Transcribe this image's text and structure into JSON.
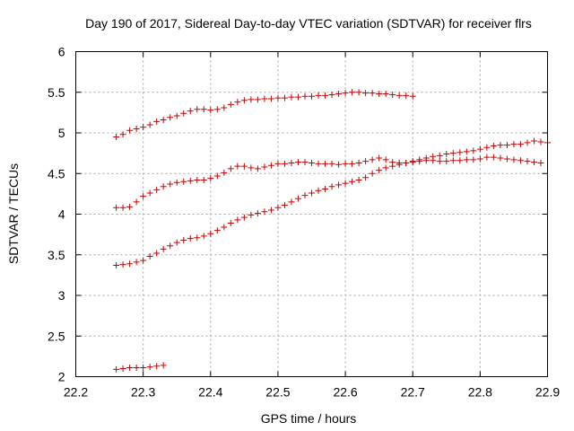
{
  "chart_data": {
    "type": "scatter",
    "title": "Day 190 of 2017, Sidereal Day-to-day VTEC variation (SDTVAR) for receiver flrs",
    "xlabel": "GPS time / hours",
    "ylabel": "SDTVAR / TECUs",
    "xlim": [
      22.2,
      22.9
    ],
    "ylim": [
      2,
      6
    ],
    "xticks": [
      "22.2",
      "22.3",
      "22.4",
      "22.5",
      "22.6",
      "22.7",
      "22.8",
      "22.9"
    ],
    "yticks": [
      "2",
      "2.5",
      "3",
      "3.5",
      "4",
      "4.5",
      "5",
      "5.5",
      "6"
    ],
    "grid": true,
    "marker": "+",
    "color": "#cc0000",
    "series": [
      {
        "name": "series-1",
        "points": [
          [
            22.26,
            4.95
          ],
          [
            22.27,
            4.98
          ],
          [
            22.28,
            5.03
          ],
          [
            22.29,
            5.05
          ],
          [
            22.3,
            5.07
          ],
          [
            22.31,
            5.1
          ],
          [
            22.32,
            5.14
          ],
          [
            22.33,
            5.16
          ],
          [
            22.34,
            5.19
          ],
          [
            22.35,
            5.21
          ],
          [
            22.36,
            5.24
          ],
          [
            22.37,
            5.27
          ],
          [
            22.38,
            5.29
          ],
          [
            22.39,
            5.29
          ],
          [
            22.4,
            5.28
          ],
          [
            22.41,
            5.29
          ],
          [
            22.42,
            5.31
          ],
          [
            22.43,
            5.35
          ],
          [
            22.44,
            5.38
          ],
          [
            22.45,
            5.4
          ],
          [
            22.46,
            5.41
          ],
          [
            22.47,
            5.41
          ],
          [
            22.48,
            5.42
          ],
          [
            22.49,
            5.42
          ],
          [
            22.5,
            5.43
          ],
          [
            22.51,
            5.43
          ],
          [
            22.52,
            5.44
          ],
          [
            22.53,
            5.44
          ],
          [
            22.54,
            5.45
          ],
          [
            22.55,
            5.45
          ],
          [
            22.56,
            5.46
          ],
          [
            22.57,
            5.46
          ],
          [
            22.58,
            5.47
          ],
          [
            22.59,
            5.48
          ],
          [
            22.6,
            5.49
          ],
          [
            22.61,
            5.5
          ],
          [
            22.62,
            5.5
          ],
          [
            22.63,
            5.49
          ],
          [
            22.64,
            5.49
          ],
          [
            22.65,
            5.48
          ],
          [
            22.66,
            5.48
          ],
          [
            22.67,
            5.47
          ],
          [
            22.68,
            5.46
          ],
          [
            22.69,
            5.46
          ],
          [
            22.7,
            5.45
          ]
        ]
      },
      {
        "name": "series-2",
        "points": [
          [
            22.26,
            4.08
          ],
          [
            22.27,
            4.08
          ],
          [
            22.28,
            4.09
          ],
          [
            22.29,
            4.15
          ],
          [
            22.3,
            4.22
          ],
          [
            22.31,
            4.26
          ],
          [
            22.32,
            4.3
          ],
          [
            22.33,
            4.34
          ],
          [
            22.34,
            4.37
          ],
          [
            22.35,
            4.39
          ],
          [
            22.36,
            4.4
          ],
          [
            22.37,
            4.41
          ],
          [
            22.38,
            4.42
          ],
          [
            22.39,
            4.42
          ],
          [
            22.4,
            4.44
          ],
          [
            22.41,
            4.47
          ],
          [
            22.42,
            4.51
          ],
          [
            22.43,
            4.56
          ],
          [
            22.44,
            4.59
          ],
          [
            22.45,
            4.59
          ],
          [
            22.46,
            4.57
          ],
          [
            22.47,
            4.56
          ],
          [
            22.48,
            4.58
          ],
          [
            22.49,
            4.6
          ],
          [
            22.5,
            4.62
          ],
          [
            22.51,
            4.62
          ],
          [
            22.52,
            4.63
          ],
          [
            22.53,
            4.64
          ],
          [
            22.54,
            4.64
          ],
          [
            22.55,
            4.63
          ],
          [
            22.56,
            4.62
          ],
          [
            22.57,
            4.62
          ],
          [
            22.58,
            4.62
          ],
          [
            22.59,
            4.61
          ],
          [
            22.6,
            4.62
          ],
          [
            22.61,
            4.62
          ],
          [
            22.62,
            4.63
          ],
          [
            22.63,
            4.65
          ],
          [
            22.64,
            4.67
          ],
          [
            22.65,
            4.69
          ],
          [
            22.66,
            4.67
          ],
          [
            22.67,
            4.64
          ],
          [
            22.68,
            4.63
          ],
          [
            22.69,
            4.63
          ],
          [
            22.7,
            4.64
          ],
          [
            22.71,
            4.65
          ],
          [
            22.72,
            4.66
          ],
          [
            22.73,
            4.66
          ],
          [
            22.74,
            4.65
          ],
          [
            22.75,
            4.65
          ],
          [
            22.76,
            4.66
          ],
          [
            22.77,
            4.66
          ],
          [
            22.78,
            4.67
          ],
          [
            22.79,
            4.67
          ],
          [
            22.8,
            4.68
          ],
          [
            22.81,
            4.7
          ],
          [
            22.82,
            4.7
          ],
          [
            22.83,
            4.69
          ],
          [
            22.84,
            4.68
          ],
          [
            22.85,
            4.67
          ],
          [
            22.86,
            4.66
          ],
          [
            22.87,
            4.65
          ],
          [
            22.88,
            4.64
          ],
          [
            22.89,
            4.63
          ]
        ]
      },
      {
        "name": "series-3",
        "points": [
          [
            22.26,
            3.37
          ],
          [
            22.27,
            3.38
          ],
          [
            22.28,
            3.39
          ],
          [
            22.29,
            3.41
          ],
          [
            22.3,
            3.43
          ],
          [
            22.31,
            3.48
          ],
          [
            22.32,
            3.52
          ],
          [
            22.33,
            3.57
          ],
          [
            22.34,
            3.61
          ],
          [
            22.35,
            3.65
          ],
          [
            22.36,
            3.68
          ],
          [
            22.37,
            3.7
          ],
          [
            22.38,
            3.71
          ],
          [
            22.39,
            3.73
          ],
          [
            22.4,
            3.76
          ],
          [
            22.41,
            3.8
          ],
          [
            22.42,
            3.84
          ],
          [
            22.43,
            3.89
          ],
          [
            22.44,
            3.93
          ],
          [
            22.45,
            3.96
          ],
          [
            22.46,
            3.99
          ],
          [
            22.47,
            4.01
          ],
          [
            22.48,
            4.03
          ],
          [
            22.49,
            4.05
          ],
          [
            22.5,
            4.08
          ],
          [
            22.51,
            4.11
          ],
          [
            22.52,
            4.15
          ],
          [
            22.53,
            4.19
          ],
          [
            22.54,
            4.23
          ],
          [
            22.55,
            4.26
          ],
          [
            22.56,
            4.29
          ],
          [
            22.57,
            4.31
          ],
          [
            22.58,
            4.34
          ],
          [
            22.59,
            4.36
          ],
          [
            22.6,
            4.38
          ],
          [
            22.61,
            4.4
          ],
          [
            22.62,
            4.42
          ],
          [
            22.63,
            4.45
          ],
          [
            22.64,
            4.5
          ],
          [
            22.65,
            4.54
          ],
          [
            22.66,
            4.57
          ],
          [
            22.67,
            4.59
          ],
          [
            22.68,
            4.61
          ],
          [
            22.69,
            4.63
          ],
          [
            22.7,
            4.65
          ],
          [
            22.71,
            4.67
          ],
          [
            22.72,
            4.69
          ],
          [
            22.73,
            4.71
          ],
          [
            22.74,
            4.72
          ],
          [
            22.75,
            4.74
          ],
          [
            22.76,
            4.75
          ],
          [
            22.77,
            4.76
          ],
          [
            22.78,
            4.77
          ],
          [
            22.79,
            4.78
          ],
          [
            22.8,
            4.8
          ],
          [
            22.81,
            4.82
          ],
          [
            22.82,
            4.84
          ],
          [
            22.83,
            4.85
          ],
          [
            22.84,
            4.85
          ],
          [
            22.85,
            4.86
          ],
          [
            22.86,
            4.86
          ],
          [
            22.87,
            4.88
          ],
          [
            22.88,
            4.9
          ],
          [
            22.89,
            4.89
          ],
          [
            22.9,
            4.88
          ]
        ]
      },
      {
        "name": "series-4",
        "points": [
          [
            22.26,
            2.09
          ],
          [
            22.27,
            2.1
          ],
          [
            22.28,
            2.11
          ],
          [
            22.29,
            2.11
          ],
          [
            22.3,
            2.11
          ],
          [
            22.31,
            2.12
          ],
          [
            22.32,
            2.13
          ],
          [
            22.33,
            2.14
          ]
        ]
      }
    ]
  }
}
